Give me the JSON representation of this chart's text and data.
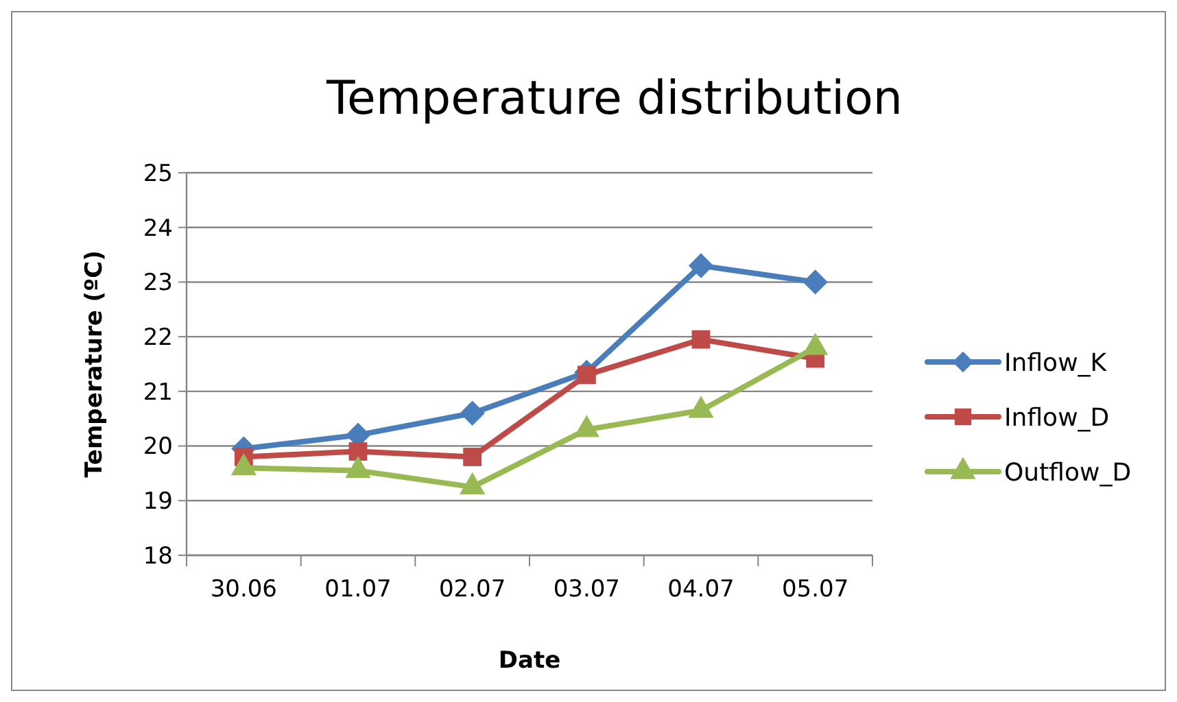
{
  "chart_data": {
    "type": "line",
    "title": "Temperature distribution",
    "xlabel": "Date",
    "ylabel": "Temperature (ºC)",
    "categories": [
      "30.06",
      "01.07",
      "02.07",
      "03.07",
      "04.07",
      "05.07"
    ],
    "series": [
      {
        "name": "Inflow_K",
        "color": "#4a7ebb",
        "marker": "diamond",
        "values": [
          19.95,
          20.2,
          20.6,
          21.35,
          23.3,
          23.0
        ]
      },
      {
        "name": "Inflow_D",
        "color": "#be4b48",
        "marker": "square",
        "values": [
          19.8,
          19.9,
          19.8,
          21.3,
          21.95,
          21.6
        ]
      },
      {
        "name": "Outflow_D",
        "color": "#98b954",
        "marker": "triangle",
        "values": [
          19.6,
          19.55,
          19.25,
          20.3,
          20.65,
          21.8
        ]
      }
    ],
    "ylim": [
      18,
      25
    ],
    "yticks": [
      18,
      19,
      20,
      21,
      22,
      23,
      24,
      25
    ],
    "grid": "y",
    "legend": "right"
  }
}
